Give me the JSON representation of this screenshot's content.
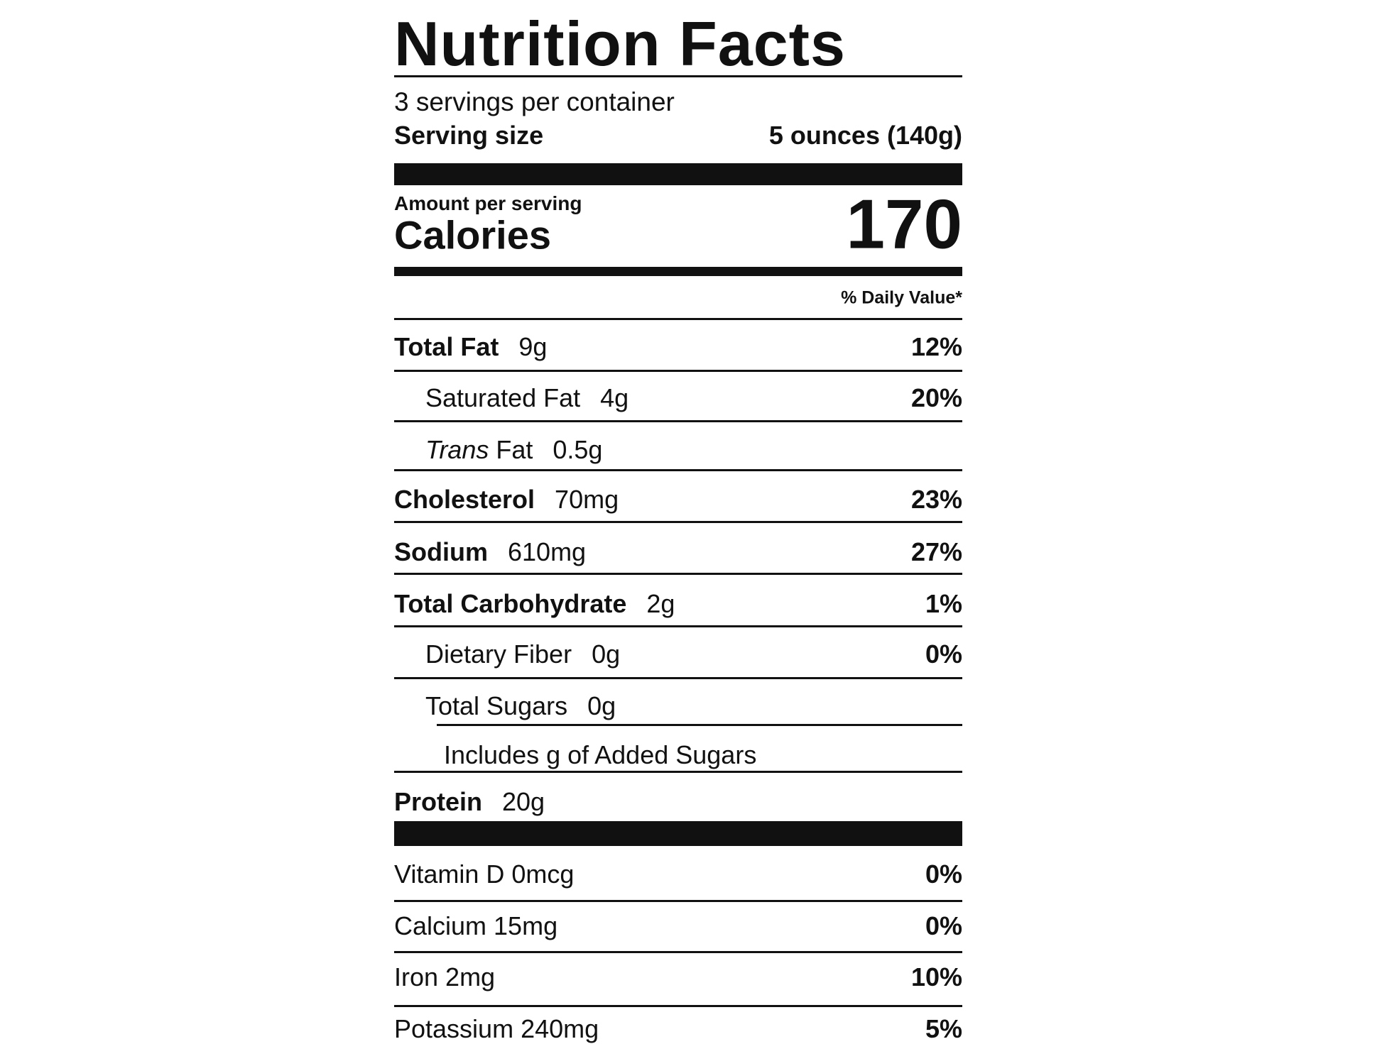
{
  "header": {
    "title": "Nutrition Facts",
    "servings": "3 servings per container",
    "serving_size_label": "Serving size",
    "serving_size_value": "5 ounces (140g)"
  },
  "calories": {
    "amount_per_serving": "Amount per serving",
    "label": "Calories",
    "value": "170"
  },
  "daily_value_header": "% Daily Value*",
  "nutrients": [
    {
      "name": "Total Fat",
      "amount": "9g",
      "daily_value": "12%"
    },
    {
      "name": "Saturated Fat",
      "amount": "4g",
      "daily_value": "20%"
    },
    {
      "name_prefix": "Trans",
      "name": "Fat",
      "amount": "0.5g"
    },
    {
      "name": "Cholesterol",
      "amount": "70mg",
      "daily_value": "23%"
    },
    {
      "name": "Sodium",
      "amount": "610mg",
      "daily_value": "27%"
    },
    {
      "name": "Total Carbohydrate",
      "amount": "2g",
      "daily_value": "1%"
    },
    {
      "name": "Dietary Fiber",
      "amount": "0g",
      "daily_value": "0%"
    },
    {
      "name": "Total Sugars",
      "amount": "0g"
    },
    {
      "text": "Includes g of Added Sugars"
    },
    {
      "name": "Protein",
      "amount": "20g"
    }
  ],
  "vitamins": [
    {
      "name": "Vitamin D",
      "amount": "0mcg",
      "daily_value": "0%"
    },
    {
      "name": "Calcium",
      "amount": "15mg",
      "daily_value": "0%"
    },
    {
      "name": "Iron",
      "amount": "2mg",
      "daily_value": "10%"
    },
    {
      "name": "Potassium",
      "amount": "240mg",
      "daily_value": "5%"
    }
  ]
}
